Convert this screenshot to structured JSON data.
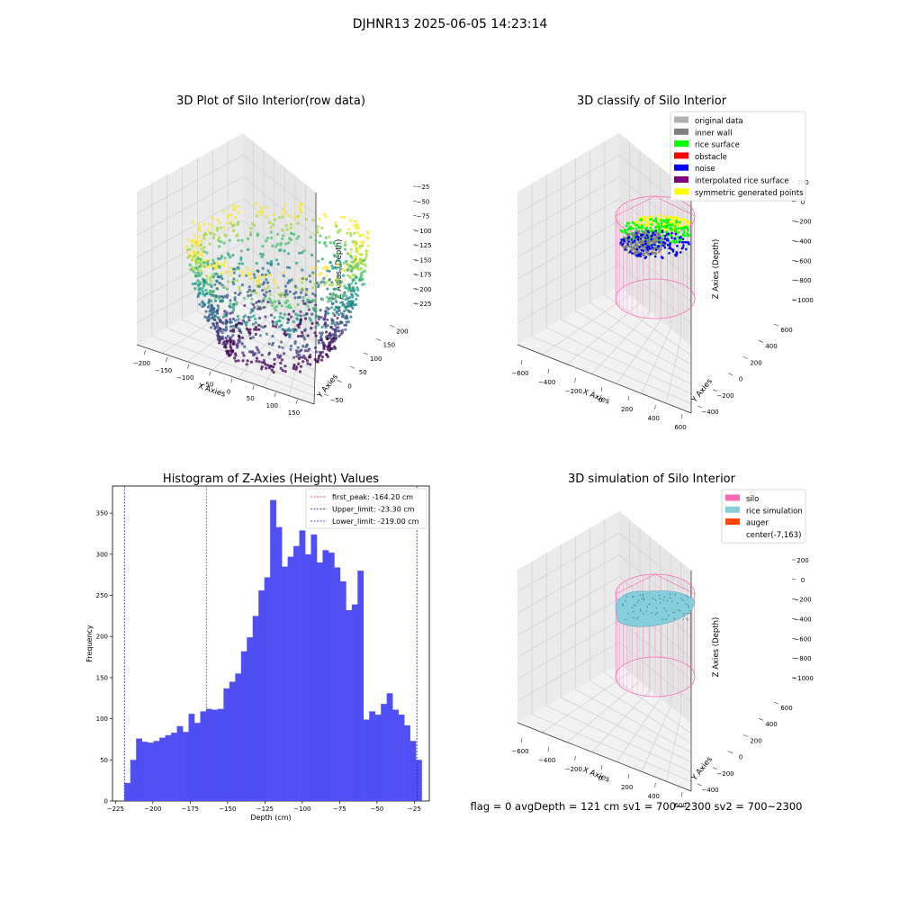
{
  "figure": {
    "suptitle": "DJHNR13 2025-06-05 14:23:14",
    "footer": "flag = 0     avgDepth = 121 cm  sv1 = 700~2300  sv2 = 700~2300"
  },
  "colors": {
    "hist_bar": "#4f4ff5",
    "first_peak": "#d62728",
    "limit": "#1f1fb4",
    "silo": "#ff69b4",
    "rice_sim": "#87cedc",
    "auger": "#ff4500",
    "original": "#b0b0b0",
    "inner_wall": "#808080",
    "rice_surface": "#00ff00",
    "obstacle": "#ff0000",
    "noise": "#0000ff",
    "interpolated": "#800080",
    "symmetric": "#ffff00"
  },
  "chart_data": [
    {
      "type": "scatter",
      "panel": "raw",
      "title": "3D Plot of Silo Interior(row data)",
      "xlabel": "X Axies",
      "ylabel": "Y Axies",
      "zlabel": "Z Axies (Depth)",
      "xticks": [
        "−200",
        "−150",
        "−100",
        "−50",
        "0",
        "50",
        "100",
        "150"
      ],
      "yticks": [
        "−50",
        "0",
        "50",
        "100",
        "150",
        "200"
      ],
      "zticks": [
        "−25",
        "−50",
        "−75",
        "−100",
        "−125",
        "−150",
        "−175",
        "−200",
        "−225"
      ],
      "xlim": [
        -220,
        170
      ],
      "ylim": [
        -70,
        215
      ],
      "zlim": [
        -240,
        -15
      ],
      "colormap": "viridis"
    },
    {
      "type": "scatter",
      "panel": "classify",
      "title": "3D classify of Silo Interior",
      "xlabel": "X Axies",
      "ylabel": "Y Axies",
      "zlabel": "Z Axies (Depth)",
      "xticks": [
        "−600",
        "−400",
        "−200",
        "0",
        "200",
        "400",
        "600"
      ],
      "yticks": [
        "−400",
        "−200",
        "0",
        "200",
        "400",
        "600"
      ],
      "zticks": [
        "200",
        "0",
        "−200",
        "−400",
        "−600",
        "−800",
        "−1000"
      ],
      "xlim": [
        -650,
        650
      ],
      "ylim": [
        -450,
        650
      ],
      "zlim": [
        -1050,
        250
      ],
      "legend": [
        "original data",
        "inner wall",
        "rice surface",
        "obstacle",
        "noise",
        "interpolated rice surface",
        "symmetric generated points"
      ],
      "legend_position": "top-right"
    },
    {
      "type": "bar",
      "panel": "histogram",
      "title": "Histogram of Z-Axies (Height) Values",
      "xlabel": "Depth (cm)",
      "ylabel": "Frequency",
      "xlim": [
        -227,
        -15
      ],
      "ylim": [
        0,
        383
      ],
      "xticks": [
        -225,
        -200,
        -175,
        -150,
        -125,
        -100,
        -75,
        -50,
        -25
      ],
      "xtick_labels": [
        "−225",
        "−200",
        "−175",
        "−150",
        "−125",
        "−100",
        "−75",
        "−50",
        "−25"
      ],
      "yticks": [
        0,
        50,
        100,
        150,
        200,
        250,
        300,
        350
      ],
      "bin_start": -219.0,
      "bin_width": 3.9,
      "values": [
        22,
        50,
        76,
        72,
        71,
        73,
        77,
        80,
        83,
        91,
        84,
        106,
        95,
        109,
        112,
        111,
        112,
        137,
        145,
        155,
        182,
        199,
        225,
        256,
        272,
        366,
        333,
        285,
        297,
        310,
        329,
        300,
        324,
        290,
        305,
        302,
        284,
        267,
        232,
        239,
        280,
        99,
        109,
        105,
        118,
        131,
        111,
        105,
        92,
        73,
        50
      ],
      "lines": [
        {
          "label": "first_peak: -164.20 cm",
          "x": -164.2,
          "color_key": "first_peak"
        },
        {
          "label": "Upper_limit: -23.30 cm",
          "x": -23.3,
          "color_key": "limit"
        },
        {
          "label": "Lower_limit: -219.00 cm",
          "x": -219.0,
          "color_key": "limit"
        }
      ],
      "legend_position": "top-right"
    },
    {
      "type": "scatter",
      "panel": "simulation",
      "title": "3D simulation of Silo Interior",
      "xlabel": "X Axies",
      "ylabel": "Y Axies",
      "zlabel": "Z Axies (Depth)",
      "xticks": [
        "−600",
        "−400",
        "−200",
        "0",
        "200",
        "400",
        "600"
      ],
      "yticks": [
        "−400",
        "−200",
        "0",
        "200",
        "400",
        "600"
      ],
      "zticks": [
        "200",
        "0",
        "−200",
        "−400",
        "−600",
        "−800",
        "−1000"
      ],
      "xlim": [
        -650,
        650
      ],
      "ylim": [
        -450,
        650
      ],
      "zlim": [
        -1050,
        250
      ],
      "legend": [
        "silo",
        "rice simulation",
        "auger",
        "center(-7,163)"
      ],
      "legend_position": "top-right"
    }
  ]
}
